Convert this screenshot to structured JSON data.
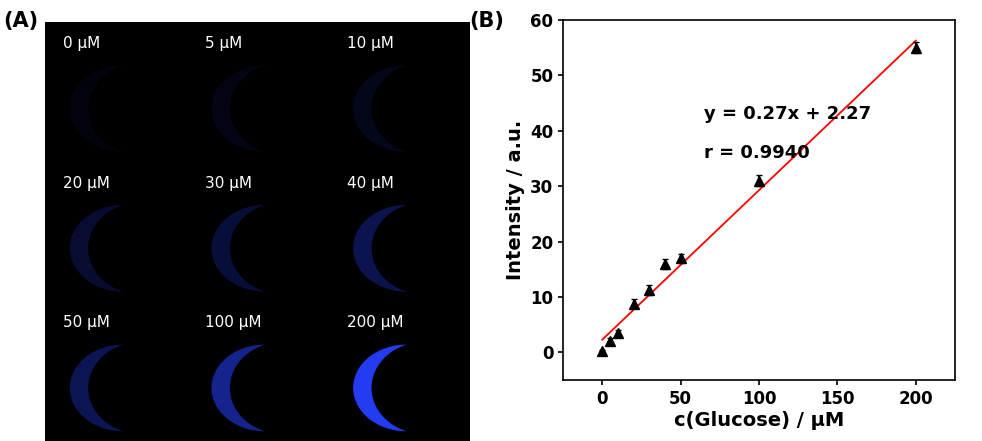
{
  "panel_labels": [
    "(A)",
    "(B)"
  ],
  "images": {
    "labels": [
      "0 μM",
      "5 μM",
      "10 μM",
      "20 μM",
      "30 μM",
      "40 μM",
      "50 μM",
      "100 μM",
      "200 μM"
    ]
  },
  "chart_data": {
    "type": "scatter",
    "x_label": "c(Glucose) / μM",
    "y_label": "Intensity / a.u.",
    "xlim": [
      -25,
      225
    ],
    "xticks": [
      0,
      50,
      100,
      150,
      200
    ],
    "ylim": [
      -5,
      60
    ],
    "yticks": [
      0,
      10,
      20,
      30,
      40,
      50,
      60
    ],
    "annotations": [
      "y = 0.27x + 2.27",
      "r = 0.9940"
    ],
    "series": [
      {
        "type": "scatter",
        "color": "#000000",
        "marker": "triangle",
        "x": [
          0,
          5,
          10,
          20,
          30,
          40,
          50,
          100,
          200
        ],
        "values": [
          0.2,
          2.0,
          3.5,
          8.8,
          11.2,
          16.0,
          17.0,
          31.0,
          55.0
        ],
        "errors": [
          0.3,
          0.5,
          0.6,
          0.8,
          0.9,
          0.9,
          0.8,
          1.0,
          1.0
        ]
      },
      {
        "type": "line",
        "color": "#ff0000",
        "line_style": "solid",
        "x": [
          0,
          200
        ],
        "values": [
          2.27,
          56.27
        ]
      }
    ]
  }
}
